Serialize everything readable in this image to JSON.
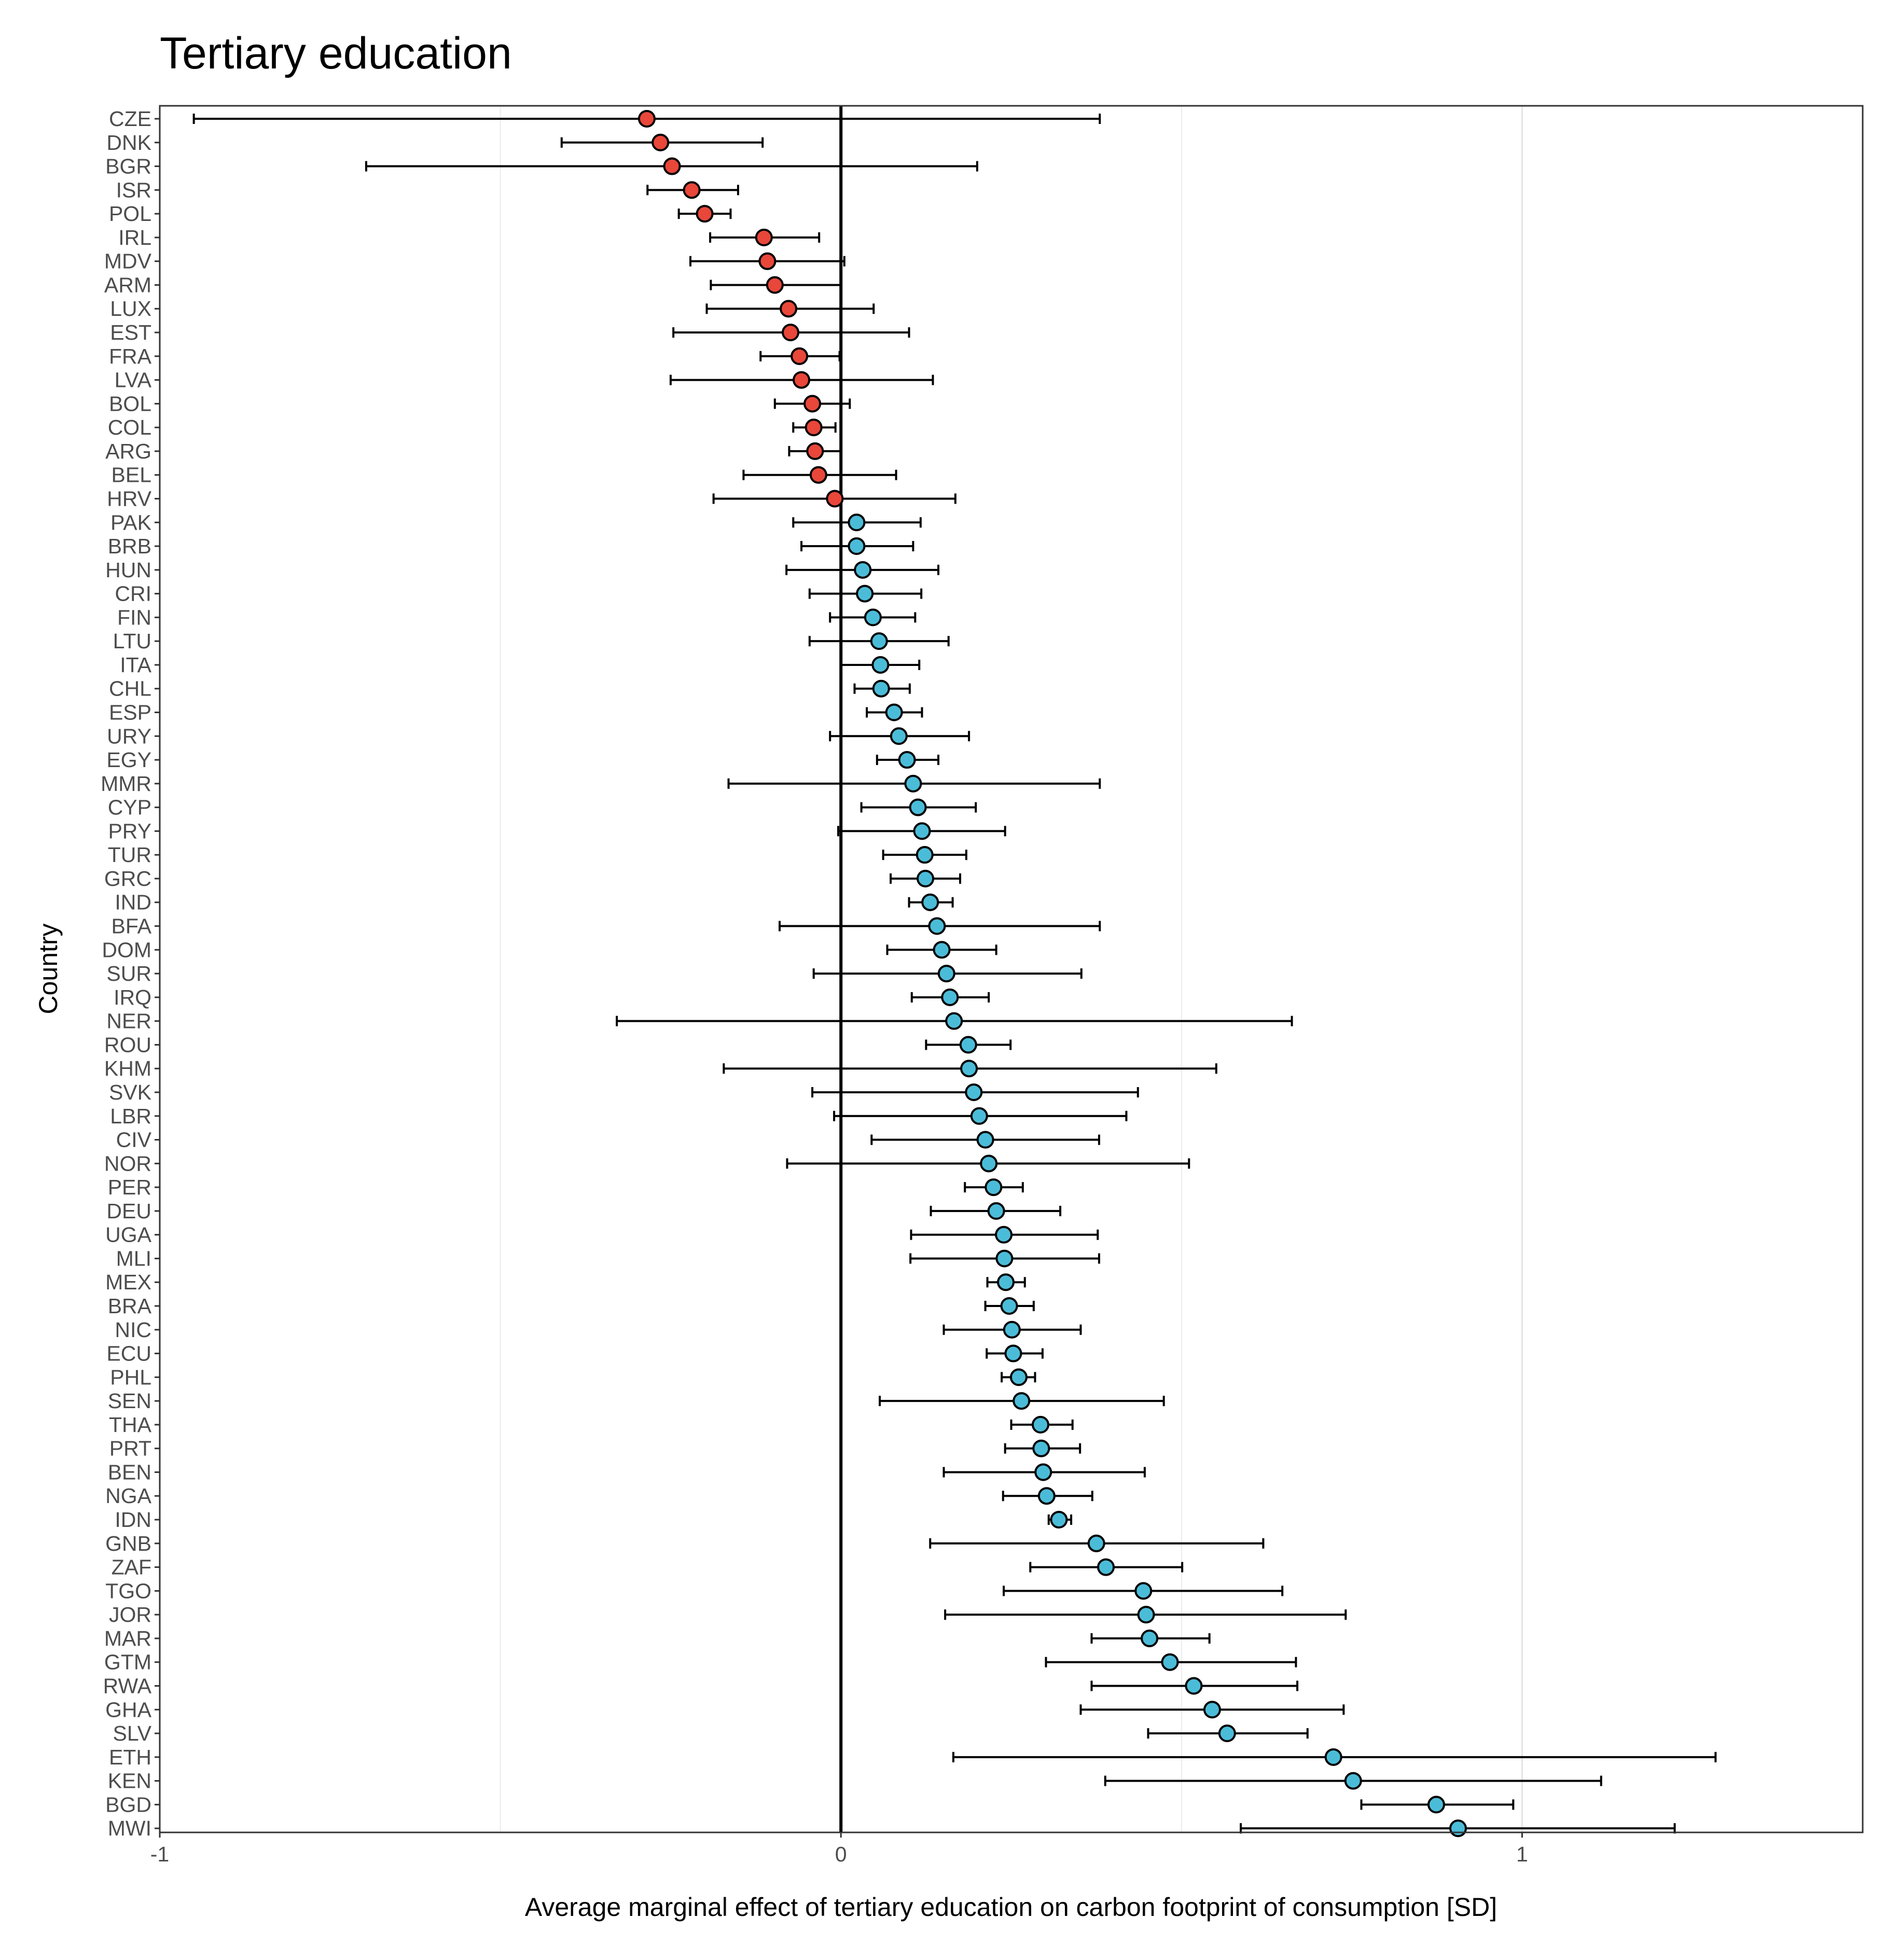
{
  "chart_data": {
    "type": "dot-errorbar",
    "title": "Tertiary education",
    "xlabel": "Average marginal effect of tertiary education on carbon footprint of consumption [SD]",
    "ylabel": "Country",
    "xlim": [
      -1,
      1.5
    ],
    "x_ticks": [
      "-1",
      "0",
      "1"
    ],
    "x_tick_values": [
      -1,
      0,
      1
    ],
    "grid": "vertical major and minor gridlines",
    "reference_line": 0,
    "colors": {
      "negative": "#E8473A",
      "positive": "#4BBCD8",
      "errorbar": "#000000",
      "gridline": "#ebebeb"
    },
    "categories": [
      "CZE",
      "DNK",
      "BGR",
      "ISR",
      "POL",
      "IRL",
      "MDV",
      "ARM",
      "LUX",
      "EST",
      "FRA",
      "LVA",
      "BOL",
      "COL",
      "ARG",
      "BEL",
      "HRV",
      "PAK",
      "BRB",
      "HUN",
      "CRI",
      "FIN",
      "LTU",
      "ITA",
      "CHL",
      "ESP",
      "URY",
      "EGY",
      "MMR",
      "CYP",
      "PRY",
      "TUR",
      "GRC",
      "IND",
      "BFA",
      "DOM",
      "SUR",
      "IRQ",
      "NER",
      "ROU",
      "KHM",
      "SVK",
      "LBR",
      "CIV",
      "NOR",
      "PER",
      "DEU",
      "UGA",
      "MLI",
      "MEX",
      "BRA",
      "NIC",
      "ECU",
      "PHL",
      "SEN",
      "THA",
      "PRT",
      "BEN",
      "NGA",
      "IDN",
      "GNB",
      "ZAF",
      "TGO",
      "JOR",
      "MAR",
      "GTM",
      "RWA",
      "GHA",
      "SLV",
      "ETH",
      "KEN",
      "BGD",
      "MWI"
    ],
    "estimate": [
      -0.285,
      -0.265,
      -0.248,
      -0.219,
      -0.2,
      -0.113,
      -0.108,
      -0.097,
      -0.077,
      -0.074,
      -0.061,
      -0.058,
      -0.042,
      -0.04,
      -0.038,
      -0.033,
      -0.009,
      0.023,
      0.023,
      0.032,
      0.035,
      0.047,
      0.056,
      0.058,
      0.059,
      0.078,
      0.085,
      0.097,
      0.106,
      0.113,
      0.119,
      0.123,
      0.124,
      0.131,
      0.141,
      0.148,
      0.155,
      0.16,
      0.166,
      0.187,
      0.188,
      0.195,
      0.203,
      0.212,
      0.217,
      0.224,
      0.228,
      0.239,
      0.24,
      0.242,
      0.247,
      0.251,
      0.253,
      0.261,
      0.265,
      0.293,
      0.294,
      0.297,
      0.302,
      0.32,
      0.375,
      0.389,
      0.444,
      0.448,
      0.453,
      0.483,
      0.518,
      0.545,
      0.567,
      0.723,
      0.752,
      0.874,
      0.906
    ],
    "lower": [
      -0.95,
      -0.41,
      -0.697,
      -0.284,
      -0.238,
      -0.192,
      -0.221,
      -0.191,
      -0.197,
      -0.246,
      -0.118,
      -0.25,
      -0.097,
      -0.07,
      -0.076,
      -0.143,
      -0.187,
      -0.07,
      -0.058,
      -0.08,
      -0.046,
      -0.016,
      -0.046,
      0.0,
      0.02,
      0.038,
      -0.016,
      0.053,
      -0.165,
      0.03,
      -0.004,
      0.062,
      0.073,
      0.1,
      -0.09,
      0.068,
      -0.04,
      0.104,
      -0.329,
      0.125,
      -0.172,
      -0.042,
      -0.01,
      0.045,
      -0.079,
      0.182,
      0.132,
      0.103,
      0.102,
      0.215,
      0.212,
      0.151,
      0.214,
      0.236,
      0.057,
      0.25,
      0.241,
      0.151,
      0.238,
      0.305,
      0.131,
      0.278,
      0.239,
      0.153,
      0.368,
      0.301,
      0.368,
      0.352,
      0.451,
      0.165,
      0.388,
      0.764,
      0.587
    ],
    "upper": [
      0.38,
      -0.115,
      0.2,
      -0.151,
      -0.162,
      -0.032,
      0.005,
      0.0,
      0.048,
      0.1,
      -0.002,
      0.135,
      0.013,
      -0.008,
      0.0,
      0.081,
      0.168,
      0.117,
      0.106,
      0.143,
      0.118,
      0.109,
      0.158,
      0.115,
      0.101,
      0.119,
      0.188,
      0.143,
      0.38,
      0.198,
      0.241,
      0.184,
      0.175,
      0.164,
      0.38,
      0.228,
      0.353,
      0.217,
      0.662,
      0.249,
      0.551,
      0.436,
      0.419,
      0.379,
      0.511,
      0.267,
      0.322,
      0.377,
      0.379,
      0.27,
      0.283,
      0.352,
      0.296,
      0.285,
      0.474,
      0.34,
      0.351,
      0.446,
      0.369,
      0.338,
      0.62,
      0.501,
      0.648,
      0.741,
      0.541,
      0.668,
      0.67,
      0.738,
      0.685,
      1.284,
      1.116,
      0.987,
      1.224
    ]
  }
}
